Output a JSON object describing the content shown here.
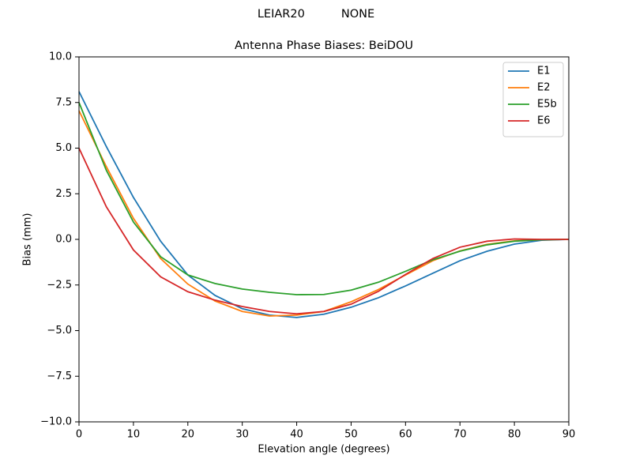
{
  "chart_data": {
    "type": "line",
    "suptitle": "LEIAR20          NONE",
    "title": "Antenna Phase Biases: BeiDOU",
    "xlabel": "Elevation angle (degrees)",
    "ylabel": "Bias (mm)",
    "x": [
      0,
      5,
      10,
      15,
      20,
      25,
      30,
      35,
      40,
      45,
      50,
      55,
      60,
      65,
      70,
      75,
      80,
      85,
      90
    ],
    "series": [
      {
        "name": "E1",
        "color": "#1f77b4",
        "values": [
          8.1,
          5.1,
          2.3,
          -0.1,
          -1.95,
          -3.07,
          -3.8,
          -4.15,
          -4.28,
          -4.1,
          -3.72,
          -3.2,
          -2.55,
          -1.86,
          -1.17,
          -0.65,
          -0.26,
          -0.05,
          0
        ]
      },
      {
        "name": "E2",
        "color": "#ff7f0e",
        "values": [
          7.05,
          4.0,
          1.15,
          -1.05,
          -2.45,
          -3.38,
          -3.95,
          -4.2,
          -4.15,
          -3.95,
          -3.42,
          -2.75,
          -1.95,
          -1.17,
          -0.63,
          -0.27,
          -0.08,
          -0.02,
          0
        ]
      },
      {
        "name": "E5b",
        "color": "#2ca02c",
        "values": [
          7.5,
          3.8,
          0.95,
          -0.95,
          -1.95,
          -2.42,
          -2.72,
          -2.9,
          -3.03,
          -3.02,
          -2.78,
          -2.35,
          -1.75,
          -1.12,
          -0.65,
          -0.3,
          -0.1,
          -0.02,
          0
        ]
      },
      {
        "name": "E6",
        "color": "#d62728",
        "values": [
          5.0,
          1.8,
          -0.58,
          -2.05,
          -2.87,
          -3.33,
          -3.68,
          -3.95,
          -4.08,
          -3.95,
          -3.55,
          -2.85,
          -1.92,
          -1.05,
          -0.43,
          -0.1,
          0.02,
          0.0,
          0
        ]
      }
    ],
    "xlim": [
      0,
      90
    ],
    "xticks": [
      0,
      10,
      20,
      30,
      40,
      50,
      60,
      70,
      80,
      90
    ],
    "ylim": [
      -10,
      10
    ],
    "yticks": [
      {
        "value": -10,
        "label": "−10.0"
      },
      {
        "value": -7.5,
        "label": "−7.5"
      },
      {
        "value": -5,
        "label": "−5.0"
      },
      {
        "value": -2.5,
        "label": "−2.5"
      },
      {
        "value": 0,
        "label": "0.0"
      },
      {
        "value": 2.5,
        "label": "2.5"
      },
      {
        "value": 5,
        "label": "5.0"
      },
      {
        "value": 7.5,
        "label": "7.5"
      },
      {
        "value": 10,
        "label": "10.0"
      }
    ],
    "legend": "upper right",
    "grid": false
  }
}
